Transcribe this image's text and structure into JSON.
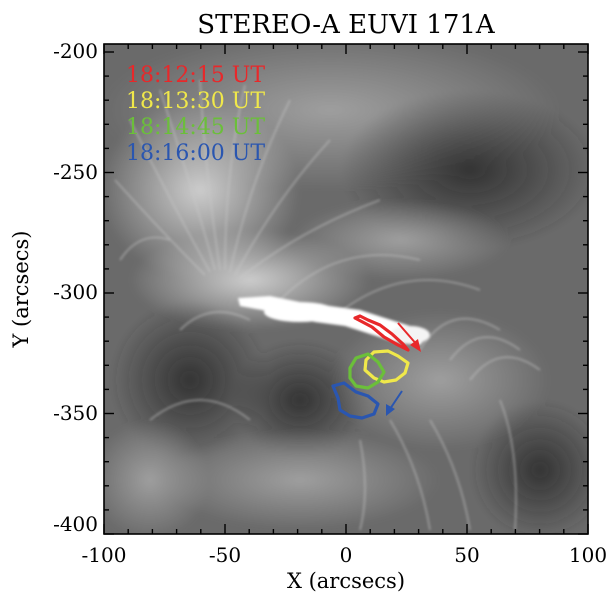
{
  "title": "STEREO-A EUVI 171A",
  "xlabel": "X (arcsecs)",
  "ylabel": "Y (arcsecs)",
  "x_ticks": [
    "-100",
    "-50",
    "0",
    "50",
    "100"
  ],
  "y_ticks": [
    "-200",
    "-250",
    "-300",
    "-350",
    "-400"
  ],
  "xlim": [
    -100,
    100
  ],
  "ylim": [
    -405,
    -198
  ],
  "legend": [
    {
      "label": "18:12:15 UT",
      "color": "#e8282a"
    },
    {
      "label": "18:13:30 UT",
      "color": "#f0e84a"
    },
    {
      "label": "18:14:45 UT",
      "color": "#6bbf3a"
    },
    {
      "label": "18:16:00 UT",
      "color": "#2a56b0"
    }
  ],
  "colors": {
    "background": "#ffffff",
    "image_base": "#6a6a6a",
    "frame": "#000000"
  }
}
